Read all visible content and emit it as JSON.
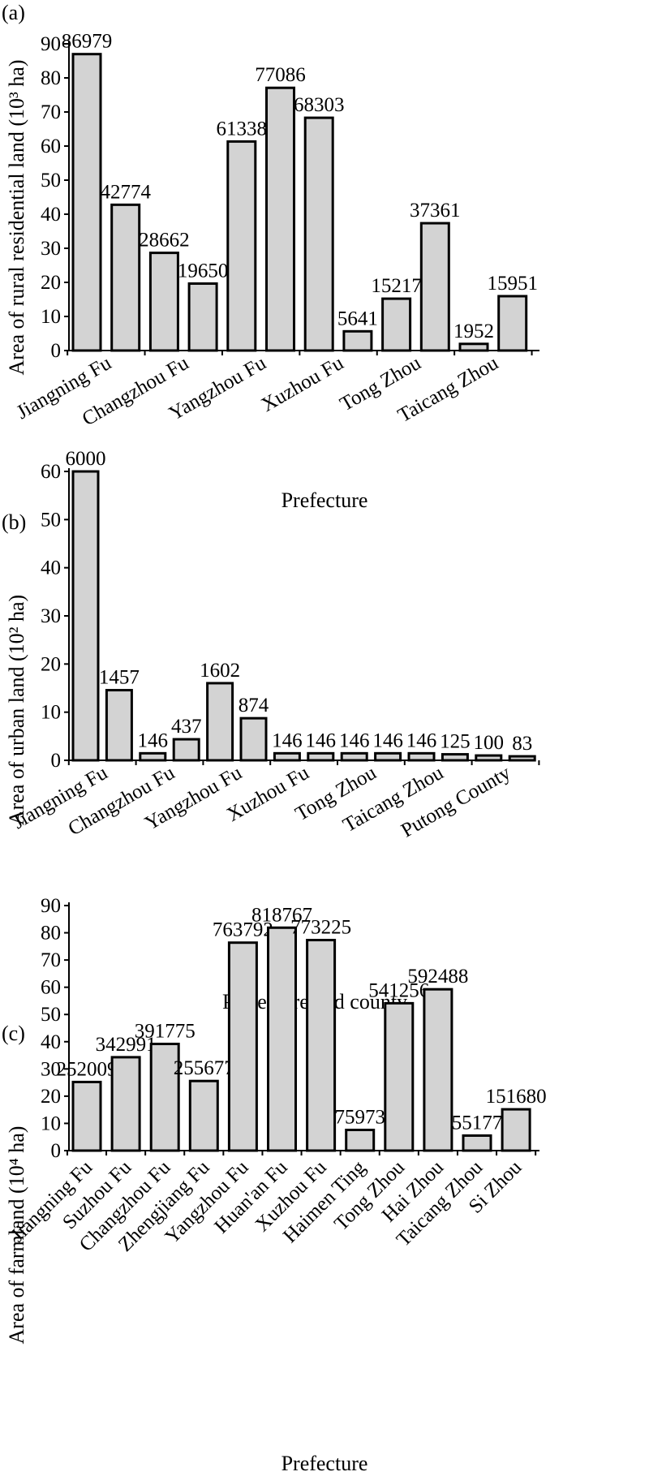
{
  "chart_data": [
    {
      "type": "bar",
      "panel": "(a)",
      "ylabel": "Area of rural residential land (10³ ha)",
      "xlabel": "Prefecture",
      "ylim": [
        0,
        90
      ],
      "yticks": [
        0,
        10,
        20,
        30,
        40,
        50,
        60,
        70,
        80,
        90
      ],
      "values": [
        86.979,
        42.774,
        28.662,
        19.65,
        61.338,
        77.086,
        68.303,
        5.641,
        15.217,
        37.361,
        1.952,
        15.951
      ],
      "data_labels": [
        "86979",
        "42774",
        "28662",
        "19650",
        "61338",
        "77086",
        "68303",
        "5641",
        "15217",
        "37361",
        "1952",
        "15951"
      ],
      "tick_labels": [
        "Jiangning Fu",
        "Changzhou Fu",
        "Yangzhou Fu",
        "Xuzhou Fu",
        "Tong Zhou",
        "Taicang Zhou"
      ],
      "tick_label_bar_index": [
        0.5,
        2.5,
        4.5,
        6.5,
        8.5,
        10.5
      ],
      "grid": false
    },
    {
      "type": "bar",
      "panel": "(b)",
      "ylabel": "Area of urban land (10² ha)",
      "xlabel": "Prefecture and county",
      "ylim": [
        0,
        60
      ],
      "yticks": [
        0,
        10,
        20,
        30,
        40,
        50,
        60
      ],
      "values": [
        60,
        14.57,
        1.46,
        4.37,
        16.02,
        8.74,
        1.46,
        1.46,
        1.46,
        1.46,
        1.46,
        1.25,
        1.0,
        0.83
      ],
      "data_labels": [
        "6000",
        "1457",
        "146",
        "437",
        "1602",
        "874",
        "146",
        "146",
        "146",
        "146",
        "146",
        "125",
        "100",
        "83"
      ],
      "tick_labels": [
        "Jiangning Fu",
        "Changzhou Fu",
        "Yangzhou Fu",
        "Xuzhou Fu",
        "Tong Zhou",
        "Taicang Zhou",
        "Putong County"
      ],
      "tick_label_bar_index": [
        0.5,
        2.5,
        4.5,
        6.5,
        8.5,
        10.5,
        12.5
      ],
      "grid": false
    },
    {
      "type": "bar",
      "panel": "(c)",
      "ylabel": "Area of farmland (10⁴ ha)",
      "xlabel": "Prefecture",
      "ylim": [
        0,
        90
      ],
      "yticks": [
        0,
        10,
        20,
        30,
        40,
        50,
        60,
        70,
        80,
        90
      ],
      "categories": [
        "Jiangning Fu",
        "Suzhou Fu",
        "Changzhou Fu",
        "Zhengjiang Fu",
        "Yangzhou Fu",
        "Huan'an Fu",
        "Xuzhou Fu",
        "Haimen Ting",
        "Tong Zhou",
        "Hai Zhou",
        "Taicang Zhou",
        "Si Zhou"
      ],
      "values": [
        25.2009,
        34.2991,
        39.1775,
        25.5677,
        76.3792,
        81.8767,
        77.3225,
        7.5973,
        54.1256,
        59.2488,
        5.5177,
        15.168
      ],
      "data_labels": [
        "252009",
        "342991",
        "391775",
        "255677",
        "763792",
        "818767",
        "773225",
        "75973",
        "541256",
        "592488",
        "55177",
        "151680"
      ],
      "grid": false
    }
  ]
}
